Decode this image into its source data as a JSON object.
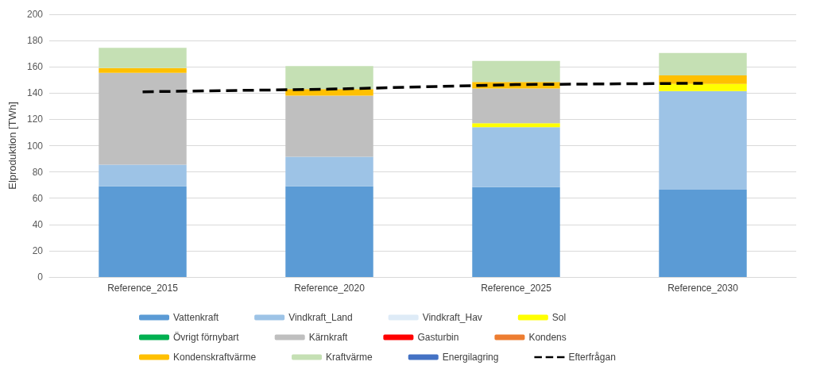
{
  "chart_data": {
    "type": "bar",
    "stacked": true,
    "ylabel": "Elproduktion [TWh]",
    "categories": [
      "Reference_2015",
      "Reference_2020",
      "Reference_2025",
      "Reference_2030"
    ],
    "ylim": [
      0,
      200
    ],
    "yticks": [
      0,
      20,
      40,
      60,
      80,
      100,
      120,
      140,
      160,
      180,
      200
    ],
    "grid": "y",
    "legend": "bottom",
    "series": [
      {
        "name": "Vattenkraft",
        "color": "#5b9bd5",
        "values": [
          69,
          69,
          68.5,
          66.5
        ]
      },
      {
        "name": "Vindkraft_Land",
        "color": "#9dc3e6",
        "values": [
          16.5,
          22.5,
          45.5,
          75
        ]
      },
      {
        "name": "Vindkraft_Hav",
        "color": "#deebf7",
        "values": [
          0,
          0,
          0,
          0
        ]
      },
      {
        "name": "Sol",
        "color": "#ffff00",
        "values": [
          0,
          0,
          3,
          5.5
        ]
      },
      {
        "name": "Övrigt förnybart",
        "color": "#00b050",
        "values": [
          0,
          0,
          0,
          0
        ]
      },
      {
        "name": "Kärnkraft",
        "color": "#bfbfbf",
        "values": [
          70,
          46.5,
          26.5,
          0
        ]
      },
      {
        "name": "Gasturbin",
        "color": "#ff0000",
        "values": [
          0,
          0,
          0,
          0
        ]
      },
      {
        "name": "Kondens",
        "color": "#ed7d31",
        "values": [
          0,
          0,
          0,
          0
        ]
      },
      {
        "name": "Kondenskraftvärme",
        "color": "#ffc000",
        "values": [
          3.5,
          5,
          5,
          6.5
        ]
      },
      {
        "name": "Kraftvärme",
        "color": "#c5e0b4",
        "values": [
          15.5,
          17.5,
          16,
          17
        ]
      },
      {
        "name": "Energilagring",
        "color": "#4472c4",
        "values": [
          0,
          0,
          0,
          0
        ]
      },
      {
        "name": "Efterfrågan",
        "type": "line",
        "color": "#000000",
        "line_style": "dashed",
        "marker": "none",
        "values": [
          141,
          143,
          146.5,
          147.5
        ]
      }
    ]
  }
}
